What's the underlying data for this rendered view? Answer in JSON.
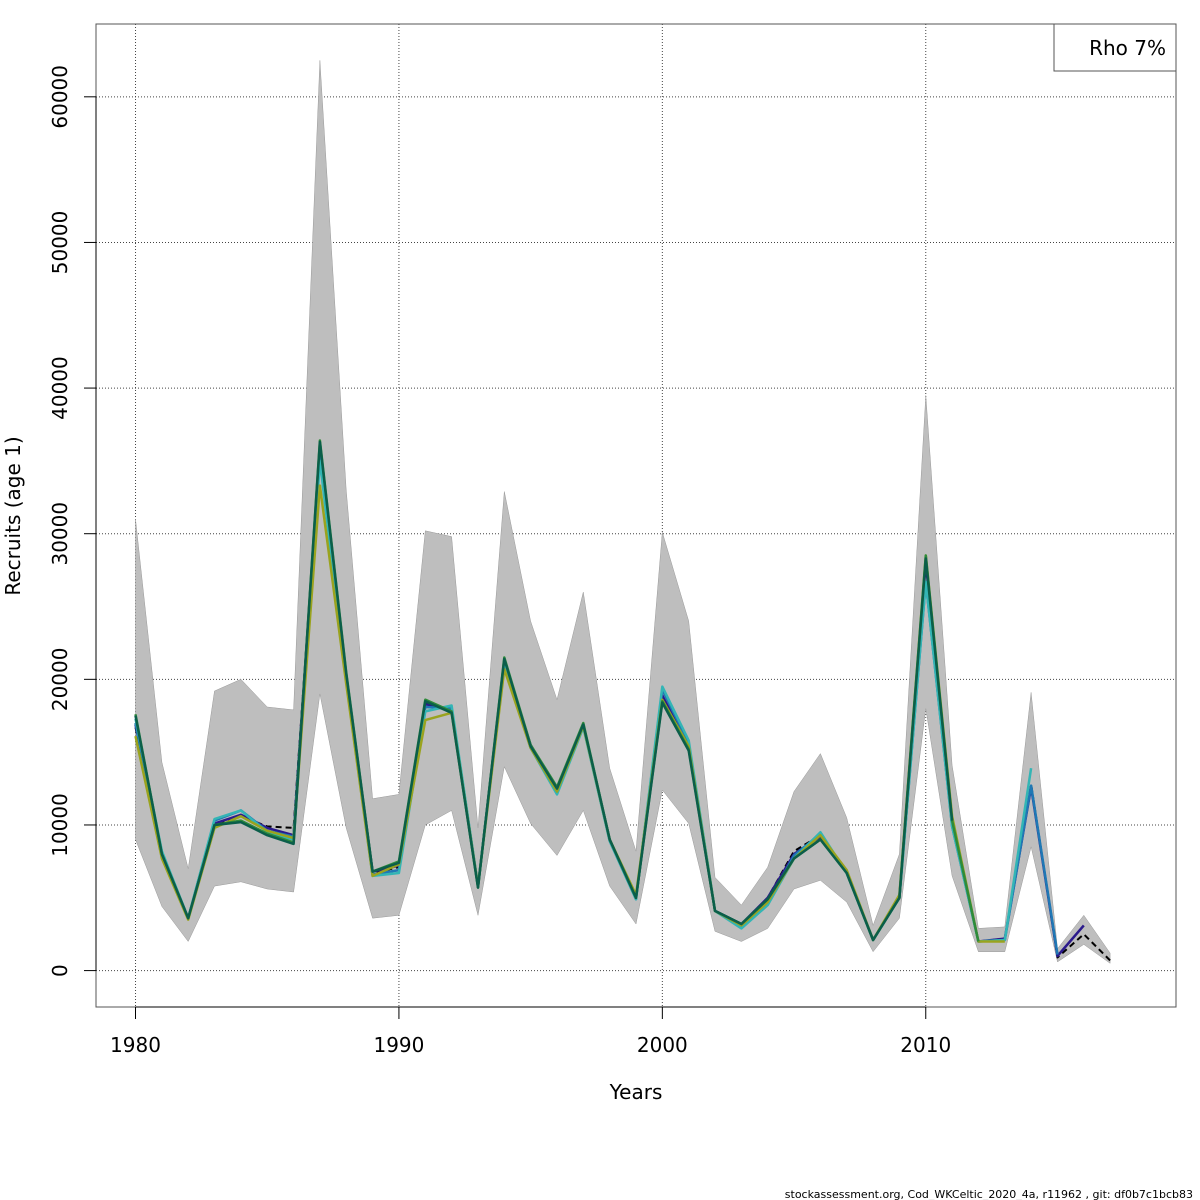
{
  "chart_data": {
    "type": "line",
    "xlabel": "Years",
    "ylabel": "Recruits (age 1)",
    "xlim": [
      1978.5,
      2019.5
    ],
    "ylim": [
      -2500,
      65000
    ],
    "x_ticks": [
      1980,
      1990,
      2000,
      2010
    ],
    "y_ticks": [
      0,
      10000,
      20000,
      30000,
      40000,
      50000,
      60000
    ],
    "grid": true,
    "legend_text": "Rho 7%",
    "legend_position": "top-right",
    "footer": "stockassessment.org, Cod_WKCeltic_2020_4a, r11962 , git: df0b7c1bcb83",
    "band": {
      "color": "#bebebe",
      "x": [
        1980,
        1981,
        1982,
        1983,
        1984,
        1985,
        1986,
        1987,
        1988,
        1989,
        1990,
        1991,
        1992,
        1993,
        1994,
        1995,
        1996,
        1997,
        1998,
        1999,
        2000,
        2001,
        2002,
        2003,
        2004,
        2005,
        2006,
        2007,
        2008,
        2009,
        2010,
        2011,
        2012,
        2013,
        2014,
        2015,
        2016,
        2017
      ],
      "upper": [
        31000,
        14300,
        7000,
        19200,
        20000,
        18100,
        17900,
        62500,
        33000,
        11800,
        12100,
        30200,
        29800,
        9800,
        32900,
        24000,
        18600,
        26000,
        13900,
        8200,
        30100,
        24000,
        6400,
        4500,
        7100,
        12300,
        14900,
        10500,
        3100,
        8000,
        39500,
        14100,
        2900,
        3000,
        19100,
        1500,
        3800,
        1200
      ],
      "lower": [
        9000,
        4400,
        2000,
        5800,
        6100,
        5600,
        5400,
        19000,
        9800,
        3600,
        3800,
        10000,
        11000,
        3800,
        14000,
        10100,
        7900,
        11000,
        5800,
        3200,
        12400,
        10100,
        2700,
        2000,
        2900,
        5600,
        6200,
        4700,
        1300,
        3600,
        18000,
        6500,
        1300,
        1300,
        8500,
        600,
        1800,
        500
      ]
    },
    "series": [
      {
        "color": "#000000",
        "dashed": true,
        "x": [
          1980,
          1981,
          1982,
          1983,
          1984,
          1985,
          1986,
          1987,
          1988,
          1989,
          1990,
          1991,
          1992,
          1993,
          1994,
          1995,
          1996,
          1997,
          1998,
          1999,
          2000,
          2001,
          2002,
          2003,
          2004,
          2005,
          2006,
          2007,
          2008,
          2009,
          2010,
          2011,
          2012,
          2013,
          2014,
          2015,
          2016,
          2017
        ],
        "values": [
          16700,
          8000,
          3600,
          10000,
          10600,
          9900,
          9800,
          35500,
          20000,
          6700,
          7100,
          18400,
          17800,
          5700,
          21100,
          15400,
          12300,
          16800,
          9000,
          5000,
          18800,
          15400,
          4100,
          3200,
          5000,
          8200,
          9300,
          6800,
          2100,
          5100,
          28000,
          10200,
          2000,
          2200,
          12800,
          900,
          2500,
          700
        ]
      },
      {
        "color": "#2b1a8c",
        "x": [
          1980,
          1981,
          1982,
          1983,
          1984,
          1985,
          1986,
          1987,
          1988,
          1989,
          1990,
          1991,
          1992,
          1993,
          1994,
          1995,
          1996,
          1997,
          1998,
          1999,
          2000,
          2001,
          2002,
          2003,
          2004,
          2005,
          2006,
          2007,
          2008,
          2009,
          2010,
          2011,
          2012,
          2013,
          2014,
          2015,
          2016
        ],
        "values": [
          16900,
          8100,
          3600,
          10100,
          10700,
          9800,
          9300,
          35700,
          20100,
          6800,
          7200,
          18300,
          17900,
          5800,
          21200,
          15500,
          12400,
          16900,
          9000,
          5000,
          18900,
          15400,
          4100,
          3200,
          5000,
          8000,
          9200,
          6800,
          2100,
          5100,
          28000,
          10300,
          2000,
          2200,
          12600,
          1000,
          3100
        ]
      },
      {
        "color": "#1f78b4",
        "x": [
          1980,
          1981,
          1982,
          1983,
          1984,
          1985,
          1986,
          1987,
          1988,
          1989,
          1990,
          1991,
          1992,
          1993,
          1994,
          1995,
          1996,
          1997,
          1998,
          1999,
          2000,
          2001,
          2002,
          2003,
          2004,
          2005,
          2006,
          2007,
          2008,
          2009,
          2010,
          2011,
          2012,
          2013,
          2014,
          2015
        ],
        "values": [
          17000,
          8100,
          3600,
          10300,
          11000,
          9600,
          9200,
          35300,
          20000,
          6600,
          6900,
          18100,
          18000,
          5800,
          21100,
          15300,
          12200,
          16800,
          8900,
          4900,
          19300,
          15600,
          4100,
          3000,
          4600,
          7900,
          9400,
          6700,
          2100,
          5000,
          26700,
          9900,
          2000,
          2100,
          12700,
          1100
        ]
      },
      {
        "color": "#33b5b5",
        "x": [
          1980,
          1981,
          1982,
          1983,
          1984,
          1985,
          1986,
          1987,
          1988,
          1989,
          1990,
          1991,
          1992,
          1993,
          1994,
          1995,
          1996,
          1997,
          1998,
          1999,
          2000,
          2001,
          2002,
          2003,
          2004,
          2005,
          2006,
          2007,
          2008,
          2009,
          2010,
          2011,
          2012,
          2013,
          2014
        ],
        "values": [
          17300,
          8200,
          3600,
          10400,
          11000,
          9500,
          9000,
          35000,
          19900,
          6500,
          6700,
          17800,
          18200,
          5800,
          21000,
          15300,
          12100,
          16700,
          8900,
          4900,
          19500,
          15800,
          4100,
          2900,
          4500,
          7700,
          9500,
          6700,
          2100,
          5000,
          26700,
          9900,
          2000,
          2100,
          13900
        ]
      },
      {
        "color": "#9aa31e",
        "x": [
          1980,
          1981,
          1982,
          1983,
          1984,
          1985,
          1986,
          1987,
          1988,
          1989,
          1990,
          1991,
          1992,
          1993,
          1994,
          1995,
          1996,
          1997,
          1998,
          1999,
          2000,
          2001,
          2002,
          2003,
          2004,
          2005,
          2006,
          2007,
          2008,
          2009,
          2010,
          2011,
          2012,
          2013
        ],
        "values": [
          16100,
          7700,
          3500,
          9800,
          10600,
          9600,
          9100,
          33300,
          19700,
          6500,
          7300,
          17200,
          17700,
          5800,
          20700,
          15300,
          12300,
          16800,
          9000,
          5200,
          18600,
          15400,
          4100,
          3100,
          4700,
          7700,
          9300,
          6900,
          2100,
          5200,
          28500,
          10600,
          2000,
          2000
        ]
      },
      {
        "color": "#2e8b3a",
        "x": [
          1980,
          1981,
          1982,
          1983,
          1984,
          1985,
          1986,
          1987,
          1988,
          1989,
          1990,
          1991,
          1992,
          1993,
          1994,
          1995,
          1996,
          1997,
          1998,
          1999,
          2000,
          2001,
          2002,
          2003,
          2004,
          2005,
          2006,
          2007,
          2008,
          2009,
          2010,
          2011,
          2012
        ],
        "values": [
          17600,
          8000,
          3600,
          10000,
          10300,
          9400,
          8800,
          36400,
          20500,
          6800,
          7500,
          18600,
          17800,
          5700,
          21500,
          15500,
          12600,
          17000,
          9000,
          5000,
          18500,
          15200,
          4100,
          3200,
          4900,
          7700,
          9000,
          6700,
          2100,
          5000,
          28500,
          10300,
          2000
        ]
      },
      {
        "color": "#0b5e4a",
        "x": [
          1980,
          1981,
          1982,
          1983,
          1984,
          1985,
          1986,
          1987,
          1988,
          1989,
          1990,
          1991,
          1992,
          1993,
          1994,
          1995,
          1996,
          1997,
          1998,
          1999,
          2000,
          2001,
          2002,
          2003,
          2004,
          2005,
          2006,
          2007,
          2008,
          2009,
          2010,
          2011
        ],
        "values": [
          17500,
          8000,
          3600,
          10000,
          10200,
          9300,
          8700,
          36300,
          20400,
          6800,
          7400,
          18500,
          17700,
          5700,
          21400,
          15400,
          12500,
          16900,
          9000,
          5000,
          18400,
          15100,
          4100,
          3200,
          4900,
          7700,
          9000,
          6700,
          2100,
          5000,
          28300,
          10300
        ]
      }
    ]
  }
}
